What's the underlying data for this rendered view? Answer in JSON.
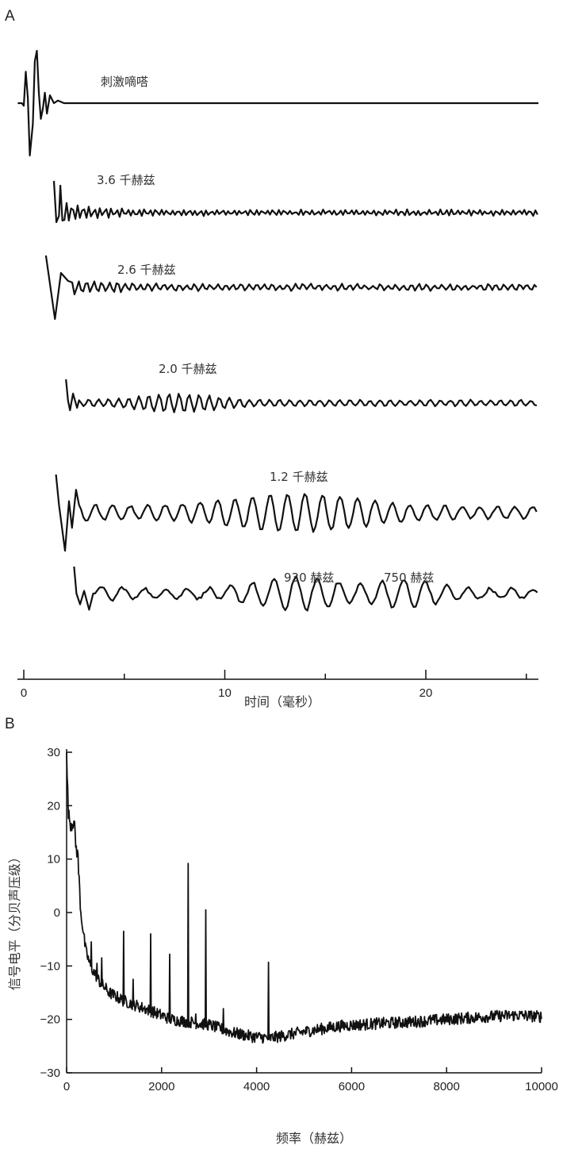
{
  "chart_data": [
    {
      "panel": "A",
      "type": "line",
      "xlabel": "时间（毫秒）",
      "xlim": [
        0,
        25.8
      ],
      "x_ticks": [
        0,
        10,
        20
      ],
      "x_minor_ticks": [
        5,
        15,
        25
      ],
      "series": [
        {
          "name": "刺激嘀嗒",
          "onset_ms": -0.3,
          "end_ms": 25.6,
          "sample_points": [
            [
              -0.3,
              0
            ],
            [
              -0.1,
              0
            ],
            [
              0.0,
              -0.05
            ],
            [
              0.1,
              0.6
            ],
            [
              0.2,
              0.1
            ],
            [
              0.3,
              -1.0
            ],
            [
              0.45,
              -0.4
            ],
            [
              0.55,
              0.8
            ],
            [
              0.65,
              1.0
            ],
            [
              0.75,
              0.2
            ],
            [
              0.85,
              -0.3
            ],
            [
              0.95,
              -0.1
            ],
            [
              1.05,
              0.2
            ],
            [
              1.15,
              -0.2
            ],
            [
              1.3,
              0.15
            ],
            [
              1.5,
              0.0
            ],
            [
              1.7,
              0.05
            ],
            [
              2.0,
              0.0
            ],
            [
              25.6,
              0.0
            ]
          ]
        },
        {
          "name": "3.6 千赫兹",
          "onset_ms": 1.5,
          "end_ms": 25.6,
          "freq_khz": 3.6
        },
        {
          "name": "2.6 千赫兹",
          "onset_ms": 1.1,
          "end_ms": 25.6,
          "freq_khz": 2.6
        },
        {
          "name": "2.0 千赫兹",
          "onset_ms": 2.1,
          "end_ms": 25.6,
          "freq_khz": 2.0
        },
        {
          "name": "1.2 千赫兹",
          "onset_ms": 1.6,
          "end_ms": 25.6,
          "freq_khz": 1.2
        },
        {
          "name": "930 赫兹 / 750 赫兹",
          "label_left": "930 赫兹",
          "label_right": "750 赫兹",
          "onset_ms": 2.5,
          "end_ms": 25.6
        }
      ]
    },
    {
      "panel": "B",
      "type": "line",
      "xlabel": "频率（赫兹）",
      "ylabel": "信号电平（分贝声压级）",
      "xlim": [
        0,
        10000
      ],
      "ylim": [
        -30,
        30
      ],
      "x_ticks": [
        0,
        2000,
        4000,
        6000,
        8000,
        10000
      ],
      "y_ticks": [
        30,
        20,
        10,
        0,
        -10,
        -20,
        -30
      ],
      "baseline": [
        [
          0,
          29
        ],
        [
          40,
          18
        ],
        [
          100,
          16.5
        ],
        [
          150,
          17.5
        ],
        [
          200,
          12
        ],
        [
          230,
          11.5
        ],
        [
          300,
          0
        ],
        [
          400,
          -7
        ],
        [
          500,
          -10
        ],
        [
          700,
          -13
        ],
        [
          900,
          -15
        ],
        [
          1200,
          -16.5
        ],
        [
          1500,
          -17.5
        ],
        [
          1800,
          -18.5
        ],
        [
          2200,
          -20
        ],
        [
          2600,
          -20.5
        ],
        [
          3000,
          -21
        ],
        [
          3500,
          -22.5
        ],
        [
          3900,
          -23.2
        ],
        [
          4300,
          -23.5
        ],
        [
          4700,
          -22.8
        ],
        [
          5200,
          -22
        ],
        [
          5800,
          -21.2
        ],
        [
          6500,
          -20.8
        ],
        [
          7200,
          -20.5
        ],
        [
          8000,
          -20
        ],
        [
          8800,
          -19.5
        ],
        [
          9500,
          -19.2
        ],
        [
          10000,
          -19.5
        ]
      ],
      "peaks": [
        {
          "f": 520,
          "level": -5.5
        },
        {
          "f": 640,
          "level": -9.5
        },
        {
          "f": 740,
          "level": -8.5
        },
        {
          "f": 1200,
          "level": -3.5
        },
        {
          "f": 1400,
          "level": -12.5
        },
        {
          "f": 1770,
          "level": -4
        },
        {
          "f": 2170,
          "level": -7.8
        },
        {
          "f": 2560,
          "level": 9.2
        },
        {
          "f": 2720,
          "level": -19
        },
        {
          "f": 2930,
          "level": 0.5
        },
        {
          "f": 3300,
          "level": -18
        },
        {
          "f": 4250,
          "level": -9.3
        }
      ]
    }
  ],
  "panels": {
    "a_label": "A",
    "b_label": "B"
  }
}
